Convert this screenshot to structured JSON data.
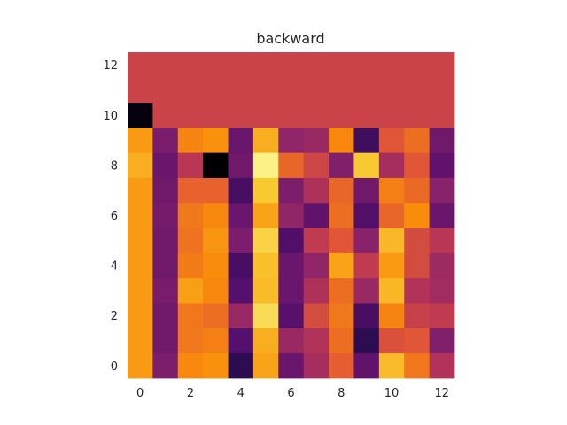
{
  "chart_data": {
    "type": "heatmap",
    "title": "backward",
    "xlabel": "",
    "ylabel": "",
    "x_ticks": [
      "0",
      "2",
      "4",
      "6",
      "8",
      "10",
      "12"
    ],
    "y_ticks": [
      "0",
      "2",
      "4",
      "6",
      "8",
      "10",
      "12"
    ],
    "x_range": [
      0,
      12
    ],
    "y_range": [
      0,
      12
    ],
    "colormap": "inferno",
    "origin": "lower",
    "grid": false,
    "rows": [
      [
        0.78,
        0.35,
        0.74,
        0.76,
        0.16,
        0.8,
        0.3,
        0.45,
        0.64,
        0.28,
        0.85,
        0.7,
        0.48
      ],
      [
        0.78,
        0.32,
        0.7,
        0.72,
        0.25,
        0.82,
        0.42,
        0.48,
        0.68,
        0.16,
        0.6,
        0.62,
        0.36
      ],
      [
        0.78,
        0.32,
        0.7,
        0.68,
        0.42,
        0.92,
        0.26,
        0.58,
        0.7,
        0.22,
        0.73,
        0.54,
        0.52
      ],
      [
        0.78,
        0.34,
        0.79,
        0.74,
        0.25,
        0.85,
        0.3,
        0.47,
        0.68,
        0.42,
        0.84,
        0.48,
        0.44
      ],
      [
        0.78,
        0.32,
        0.71,
        0.75,
        0.22,
        0.86,
        0.3,
        0.4,
        0.8,
        0.52,
        0.78,
        0.58,
        0.43
      ],
      [
        0.78,
        0.32,
        0.69,
        0.77,
        0.35,
        0.9,
        0.24,
        0.52,
        0.62,
        0.38,
        0.84,
        0.58,
        0.5
      ],
      [
        0.78,
        0.33,
        0.7,
        0.74,
        0.3,
        0.8,
        0.4,
        0.28,
        0.68,
        0.24,
        0.66,
        0.75,
        0.3
      ],
      [
        0.78,
        0.32,
        0.65,
        0.65,
        0.22,
        0.88,
        0.35,
        0.47,
        0.66,
        0.32,
        0.72,
        0.67,
        0.38
      ],
      [
        0.82,
        0.3,
        0.5,
        0.0,
        0.32,
        0.97,
        0.66,
        0.56,
        0.36,
        0.88,
        0.45,
        0.62,
        0.28
      ],
      [
        0.78,
        0.34,
        0.73,
        0.76,
        0.3,
        0.82,
        0.4,
        0.42,
        0.74,
        0.2,
        0.62,
        0.68,
        0.32
      ],
      [
        0.02,
        0.55,
        0.55,
        0.55,
        0.55,
        0.55,
        0.55,
        0.55,
        0.55,
        0.55,
        0.55,
        0.55,
        0.55
      ],
      [
        0.55,
        0.55,
        0.55,
        0.55,
        0.55,
        0.55,
        0.55,
        0.55,
        0.55,
        0.55,
        0.55,
        0.55,
        0.55
      ],
      [
        0.55,
        0.55,
        0.55,
        0.55,
        0.55,
        0.55,
        0.55,
        0.55,
        0.55,
        0.55,
        0.55,
        0.55,
        0.55
      ]
    ]
  }
}
